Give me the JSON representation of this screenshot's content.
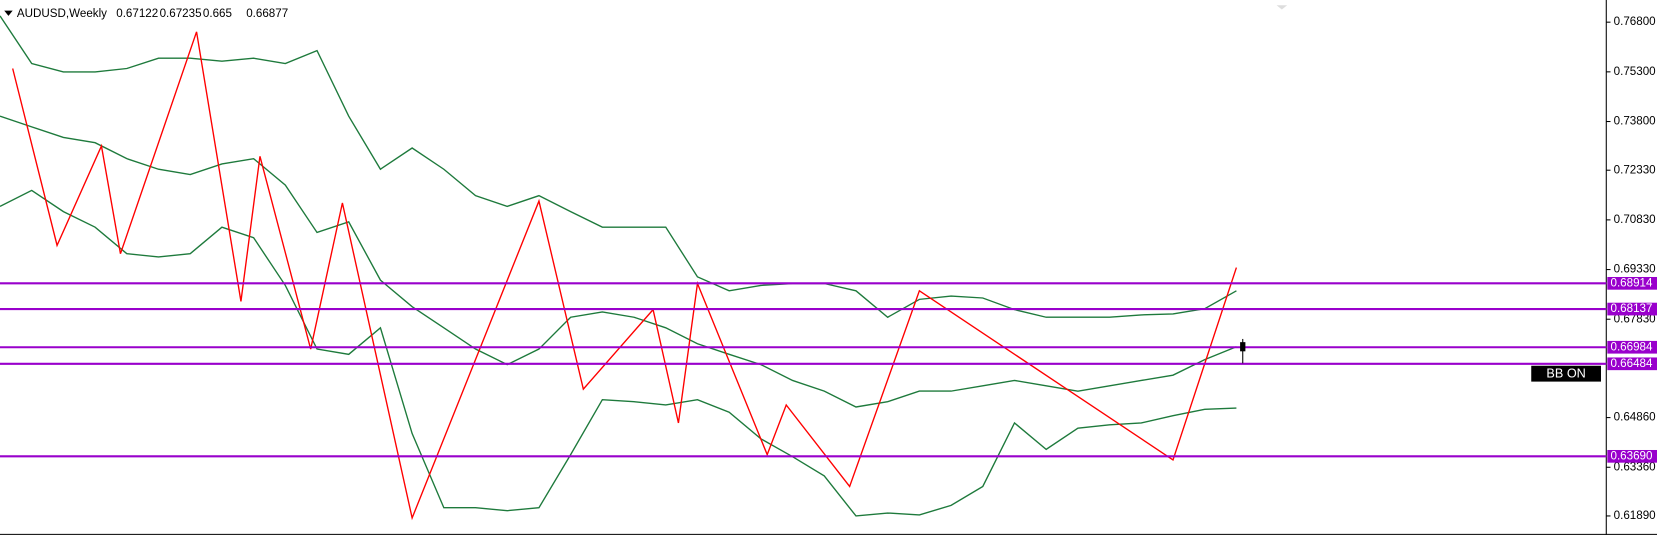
{
  "chart_data": {
    "type": "candlestick",
    "symbol": "AUDUSD,Weekly",
    "last_bar": {
      "open": 0.67122,
      "high": 0.67235,
      "low": 0.665,
      "close": 0.66877
    },
    "last_bar_x": 196,
    "annotation": "BB ON",
    "xlim": [
      0,
      253
    ],
    "ylim": [
      0.6135,
      0.7731
    ],
    "yticks": [
      {
        "value": 0.768,
        "label": "0.76800"
      },
      {
        "value": 0.753,
        "label": "0.75300"
      },
      {
        "value": 0.738,
        "label": "0.73800"
      },
      {
        "value": 0.7233,
        "label": "0.72330"
      },
      {
        "value": 0.7083,
        "label": "0.70830"
      },
      {
        "value": 0.6933,
        "label": "0.69330"
      },
      {
        "value": 0.6783,
        "label": "0.67830"
      },
      {
        "value": 0.6486,
        "label": "0.64860"
      },
      {
        "value": 0.6336,
        "label": "0.63360"
      },
      {
        "value": 0.6189,
        "label": "0.61890"
      }
    ],
    "level_color": "#9900cc",
    "levels": [
      {
        "value": 0.68914,
        "label": "0.68914"
      },
      {
        "value": 0.68137,
        "label": "0.68137"
      },
      {
        "value": 0.66984,
        "label": "0.66984"
      },
      {
        "value": 0.66484,
        "label": "0.66484"
      },
      {
        "value": 0.6369,
        "label": "0.63690"
      }
    ],
    "series": [
      {
        "color": "#1e7a3c",
        "x": [
          0,
          5,
          10,
          15,
          20,
          25,
          30,
          35,
          40,
          45,
          50,
          55,
          60,
          65,
          70,
          75,
          80,
          85,
          90,
          95,
          100,
          105,
          110,
          115,
          120,
          125,
          130,
          135,
          140,
          145,
          150,
          155,
          160,
          165,
          170,
          175,
          180,
          185,
          190,
          195
        ],
        "values": [
          0.7699,
          0.7555,
          0.753,
          0.753,
          0.754,
          0.7571,
          0.7571,
          0.7562,
          0.7571,
          0.7555,
          0.7594,
          0.7396,
          0.7236,
          0.73,
          0.7236,
          0.7156,
          0.7124,
          0.7156,
          0.7108,
          0.7061,
          0.7061,
          0.7061,
          0.6911,
          0.6869,
          0.6885,
          0.6891,
          0.6891,
          0.6869,
          0.6789,
          0.6843,
          0.6853,
          0.6847,
          0.6812,
          0.6789,
          0.6789,
          0.6789,
          0.6796,
          0.6799,
          0.6815,
          0.6869
        ]
      },
      {
        "color": "#1e7a3c",
        "x": [
          0,
          5,
          10,
          15,
          20,
          25,
          30,
          35,
          40,
          45,
          50,
          55,
          60,
          65,
          70,
          75,
          80,
          85,
          90,
          95,
          100,
          105,
          110,
          115,
          120,
          125,
          130,
          135,
          140,
          145,
          150,
          155,
          160,
          165,
          170,
          175,
          180,
          185,
          190,
          195
        ],
        "values": [
          0.7396,
          0.7364,
          0.7332,
          0.7316,
          0.7268,
          0.7236,
          0.722,
          0.7252,
          0.7268,
          0.7188,
          0.7045,
          0.7077,
          0.6901,
          0.6821,
          0.6757,
          0.6693,
          0.6646,
          0.6693,
          0.6789,
          0.6805,
          0.6789,
          0.6757,
          0.6709,
          0.6677,
          0.6646,
          0.6598,
          0.6566,
          0.6518,
          0.6534,
          0.6566,
          0.6566,
          0.6582,
          0.6598,
          0.6582,
          0.6566,
          0.6582,
          0.6598,
          0.6614,
          0.6661,
          0.67
        ]
      },
      {
        "color": "#1e7a3c",
        "x": [
          0,
          5,
          10,
          15,
          20,
          25,
          30,
          35,
          40,
          45,
          50,
          55,
          60,
          65,
          70,
          75,
          80,
          85,
          90,
          95,
          100,
          105,
          110,
          115,
          120,
          125,
          130,
          135,
          140,
          145,
          150,
          155,
          160,
          165,
          170,
          175,
          180,
          185,
          190,
          195
        ],
        "values": [
          0.7124,
          0.7172,
          0.7108,
          0.7061,
          0.6981,
          0.6971,
          0.6981,
          0.7061,
          0.7029,
          0.6885,
          0.6693,
          0.6677,
          0.6757,
          0.6438,
          0.6214,
          0.6214,
          0.6205,
          0.6214,
          0.6374,
          0.654,
          0.6534,
          0.6524,
          0.654,
          0.6502,
          0.6422,
          0.6368,
          0.631,
          0.6189,
          0.6198,
          0.6192,
          0.6221,
          0.6278,
          0.647,
          0.639,
          0.6454,
          0.6464,
          0.647,
          0.6492,
          0.6511,
          0.6515
        ]
      },
      {
        "color": "#ff0000",
        "x": [
          2,
          9,
          16,
          19,
          31,
          38,
          41,
          49,
          54,
          65,
          85,
          92,
          103,
          107,
          110,
          121,
          124,
          134,
          145,
          185,
          195
        ],
        "values": [
          0.754,
          0.7006,
          0.7306,
          0.6981,
          0.7651,
          0.6837,
          0.7275,
          0.6693,
          0.7134,
          0.6183,
          0.714,
          0.6572,
          0.6812,
          0.647,
          0.6891,
          0.6374,
          0.6524,
          0.6278,
          0.6869,
          0.6358,
          0.6939
        ]
      }
    ]
  }
}
